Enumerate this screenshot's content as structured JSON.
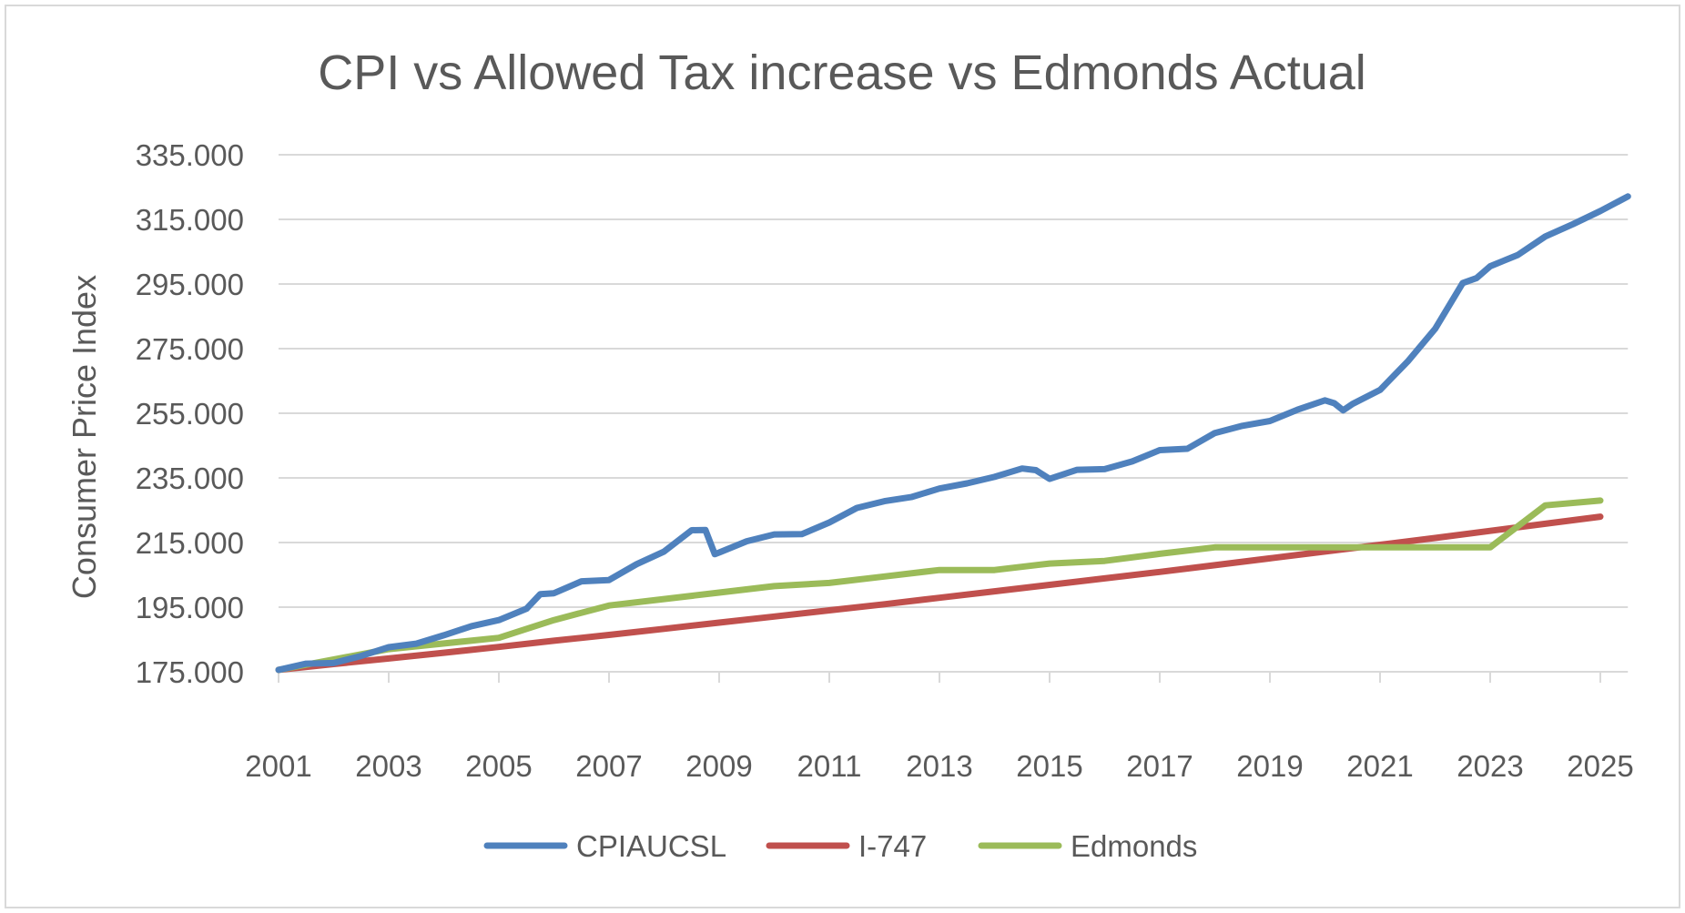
{
  "chart_data": {
    "type": "line",
    "title": "CPI vs Allowed Tax increase vs Edmonds Actual",
    "xlabel": "",
    "ylabel": "Consumer Price Index",
    "xlim": [
      2001,
      2025.5
    ],
    "ylim": [
      175,
      335
    ],
    "x_ticks": [
      "2001",
      "2003",
      "2005",
      "2007",
      "2009",
      "2011",
      "2013",
      "2015",
      "2017",
      "2019",
      "2021",
      "2023",
      "2025"
    ],
    "y_ticks": [
      "175.000",
      "195.000",
      "215.000",
      "235.000",
      "255.000",
      "275.000",
      "295.000",
      "315.000",
      "335.000"
    ],
    "grid": true,
    "legend": "bottom",
    "series": [
      {
        "name": "CPIAUCSL",
        "color": "#4F81BD",
        "x": [
          2001.0,
          2001.5,
          2002.0,
          2002.5,
          2003.0,
          2003.5,
          2004.0,
          2004.5,
          2005.0,
          2005.5,
          2005.75,
          2006.0,
          2006.5,
          2007.0,
          2007.5,
          2008.0,
          2008.5,
          2008.75,
          2008.92,
          2009.0,
          2009.5,
          2010.0,
          2010.5,
          2011.0,
          2011.5,
          2012.0,
          2012.5,
          2013.0,
          2013.5,
          2014.0,
          2014.5,
          2014.75,
          2015.0,
          2015.5,
          2016.0,
          2016.5,
          2017.0,
          2017.5,
          2018.0,
          2018.5,
          2019.0,
          2019.5,
          2020.0,
          2020.17,
          2020.33,
          2020.5,
          2021.0,
          2021.5,
          2022.0,
          2022.5,
          2022.75,
          2023.0,
          2023.5,
          2024.0,
          2024.5,
          2025.0,
          2025.5
        ],
        "y": [
          175.6,
          177.5,
          177.7,
          179.9,
          182.6,
          183.7,
          186.3,
          189.1,
          191.0,
          194.5,
          199.0,
          199.3,
          203.0,
          203.4,
          208.3,
          212.2,
          218.8,
          218.9,
          211.4,
          211.9,
          215.4,
          217.5,
          217.6,
          221.2,
          225.7,
          227.8,
          229.1,
          231.7,
          233.3,
          235.3,
          237.9,
          237.4,
          234.7,
          237.5,
          237.7,
          240.1,
          243.6,
          244.0,
          248.9,
          251.1,
          252.6,
          256.1,
          259.0,
          258.1,
          255.9,
          257.9,
          262.2,
          271.0,
          281.1,
          295.3,
          296.8,
          300.5,
          304.0,
          309.7,
          313.5,
          317.6,
          322.1
        ]
      },
      {
        "name": "I-747",
        "color": "#C0504D",
        "x": [
          2001,
          2002,
          2003,
          2004,
          2005,
          2006,
          2007,
          2008,
          2009,
          2010,
          2011,
          2012,
          2013,
          2014,
          2015,
          2016,
          2017,
          2018,
          2019,
          2020,
          2021,
          2022,
          2023,
          2024,
          2025
        ],
        "y": [
          175.6,
          177.4,
          179.1,
          180.9,
          182.7,
          184.6,
          186.4,
          188.3,
          190.2,
          192.1,
          194.0,
          195.9,
          197.9,
          199.9,
          201.9,
          203.9,
          205.9,
          208.0,
          210.1,
          212.2,
          214.3,
          216.4,
          218.6,
          220.8,
          223.0
        ]
      },
      {
        "name": "Edmonds",
        "color": "#9BBB59",
        "x": [
          2001,
          2003,
          2005,
          2006,
          2007,
          2009,
          2010,
          2011,
          2012,
          2013,
          2014,
          2015,
          2016,
          2017,
          2018,
          2019,
          2020,
          2021,
          2022,
          2023,
          2024,
          2025
        ],
        "y": [
          175.6,
          182.0,
          185.5,
          191.0,
          195.5,
          199.5,
          201.5,
          202.5,
          204.5,
          206.5,
          206.5,
          208.5,
          209.3,
          211.5,
          213.5,
          213.5,
          213.5,
          213.5,
          213.5,
          213.5,
          226.5,
          228.0
        ]
      }
    ]
  }
}
